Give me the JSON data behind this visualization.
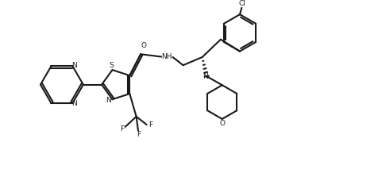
{
  "bg_color": "#ffffff",
  "line_color": "#1a1a1a",
  "line_width": 1.5,
  "figsize": [
    4.76,
    2.18
  ],
  "dpi": 100,
  "xlim": [
    0,
    10
  ],
  "ylim": [
    0,
    4.58
  ]
}
